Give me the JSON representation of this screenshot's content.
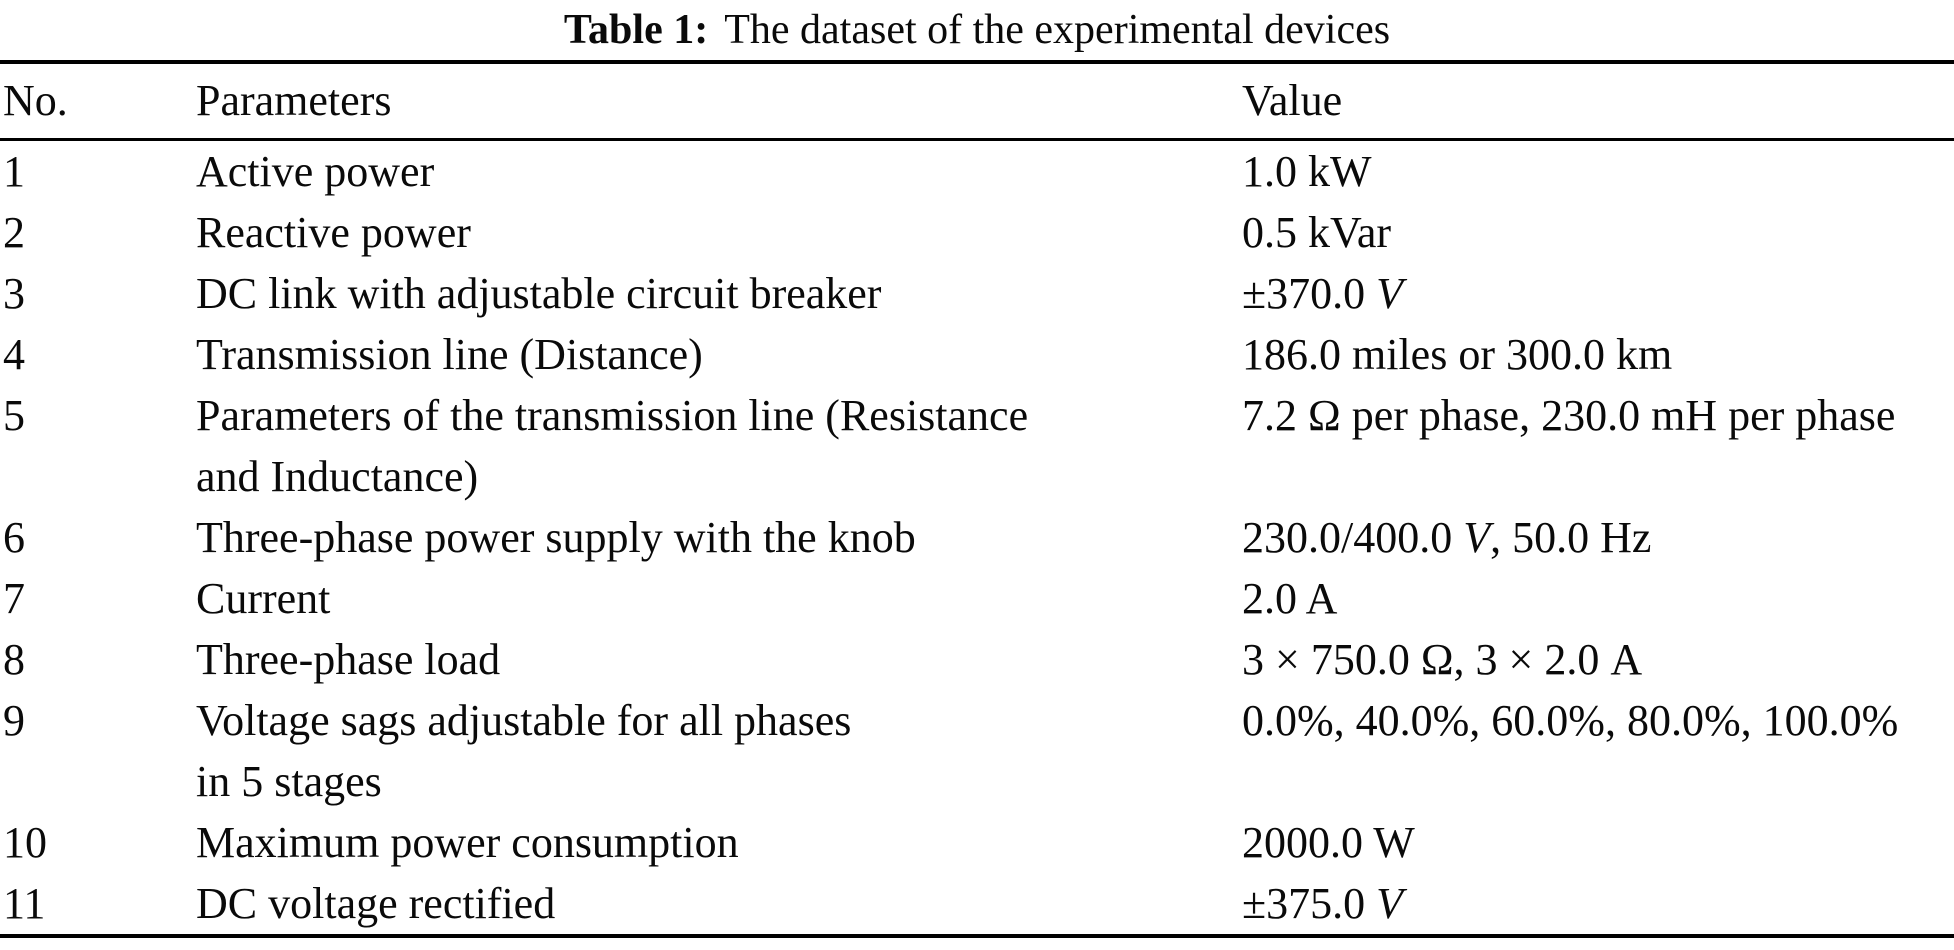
{
  "title": {
    "label": "Table 1:",
    "text": "The dataset of the experimental devices"
  },
  "colors": {
    "text": "#000000",
    "background": "#ffffff",
    "rule": "#000000"
  },
  "table": {
    "headers": [
      "No.",
      "Parameters",
      "Value"
    ],
    "rows": [
      {
        "no": "1",
        "param": "Active power",
        "value": [
          {
            "t": "1.0 kW"
          }
        ]
      },
      {
        "no": "2",
        "param": "Reactive power",
        "value": [
          {
            "t": "0.5 kVar"
          }
        ]
      },
      {
        "no": "3",
        "param": "DC link with adjustable circuit breaker",
        "value": [
          {
            "t": "±370.0 "
          },
          {
            "t": "V",
            "i": true
          }
        ]
      },
      {
        "no": "4",
        "param": "Transmission line (Distance)",
        "value": [
          {
            "t": "186.0 miles or 300.0 km"
          }
        ]
      },
      {
        "no": "5",
        "param": "Parameters of the transmission line (Resistance\nand Inductance)",
        "value": [
          {
            "t": "7.2 Ω per phase, 230.0 mH per phase"
          }
        ]
      },
      {
        "no": "6",
        "param": "Three-phase power supply with the knob",
        "value": [
          {
            "t": "230.0/400.0 "
          },
          {
            "t": "V",
            "i": true
          },
          {
            "t": ", 50.0 Hz"
          }
        ]
      },
      {
        "no": "7",
        "param": "Current",
        "value": [
          {
            "t": "2.0 A"
          }
        ]
      },
      {
        "no": "8",
        "param": "Three-phase load",
        "value": [
          {
            "t": "3 × 750.0 Ω, 3 × 2.0 A"
          }
        ]
      },
      {
        "no": "9",
        "param": "Voltage sags adjustable for all phases\nin 5 stages",
        "value": [
          {
            "t": "0.0%, 40.0%, 60.0%, 80.0%, 100.0%"
          }
        ]
      },
      {
        "no": "10",
        "param": "Maximum power consumption",
        "value": [
          {
            "t": "2000.0 W"
          }
        ]
      },
      {
        "no": "11",
        "param": "DC voltage rectified",
        "value": [
          {
            "t": "±375.0 "
          },
          {
            "t": "V",
            "i": true
          }
        ]
      }
    ]
  }
}
